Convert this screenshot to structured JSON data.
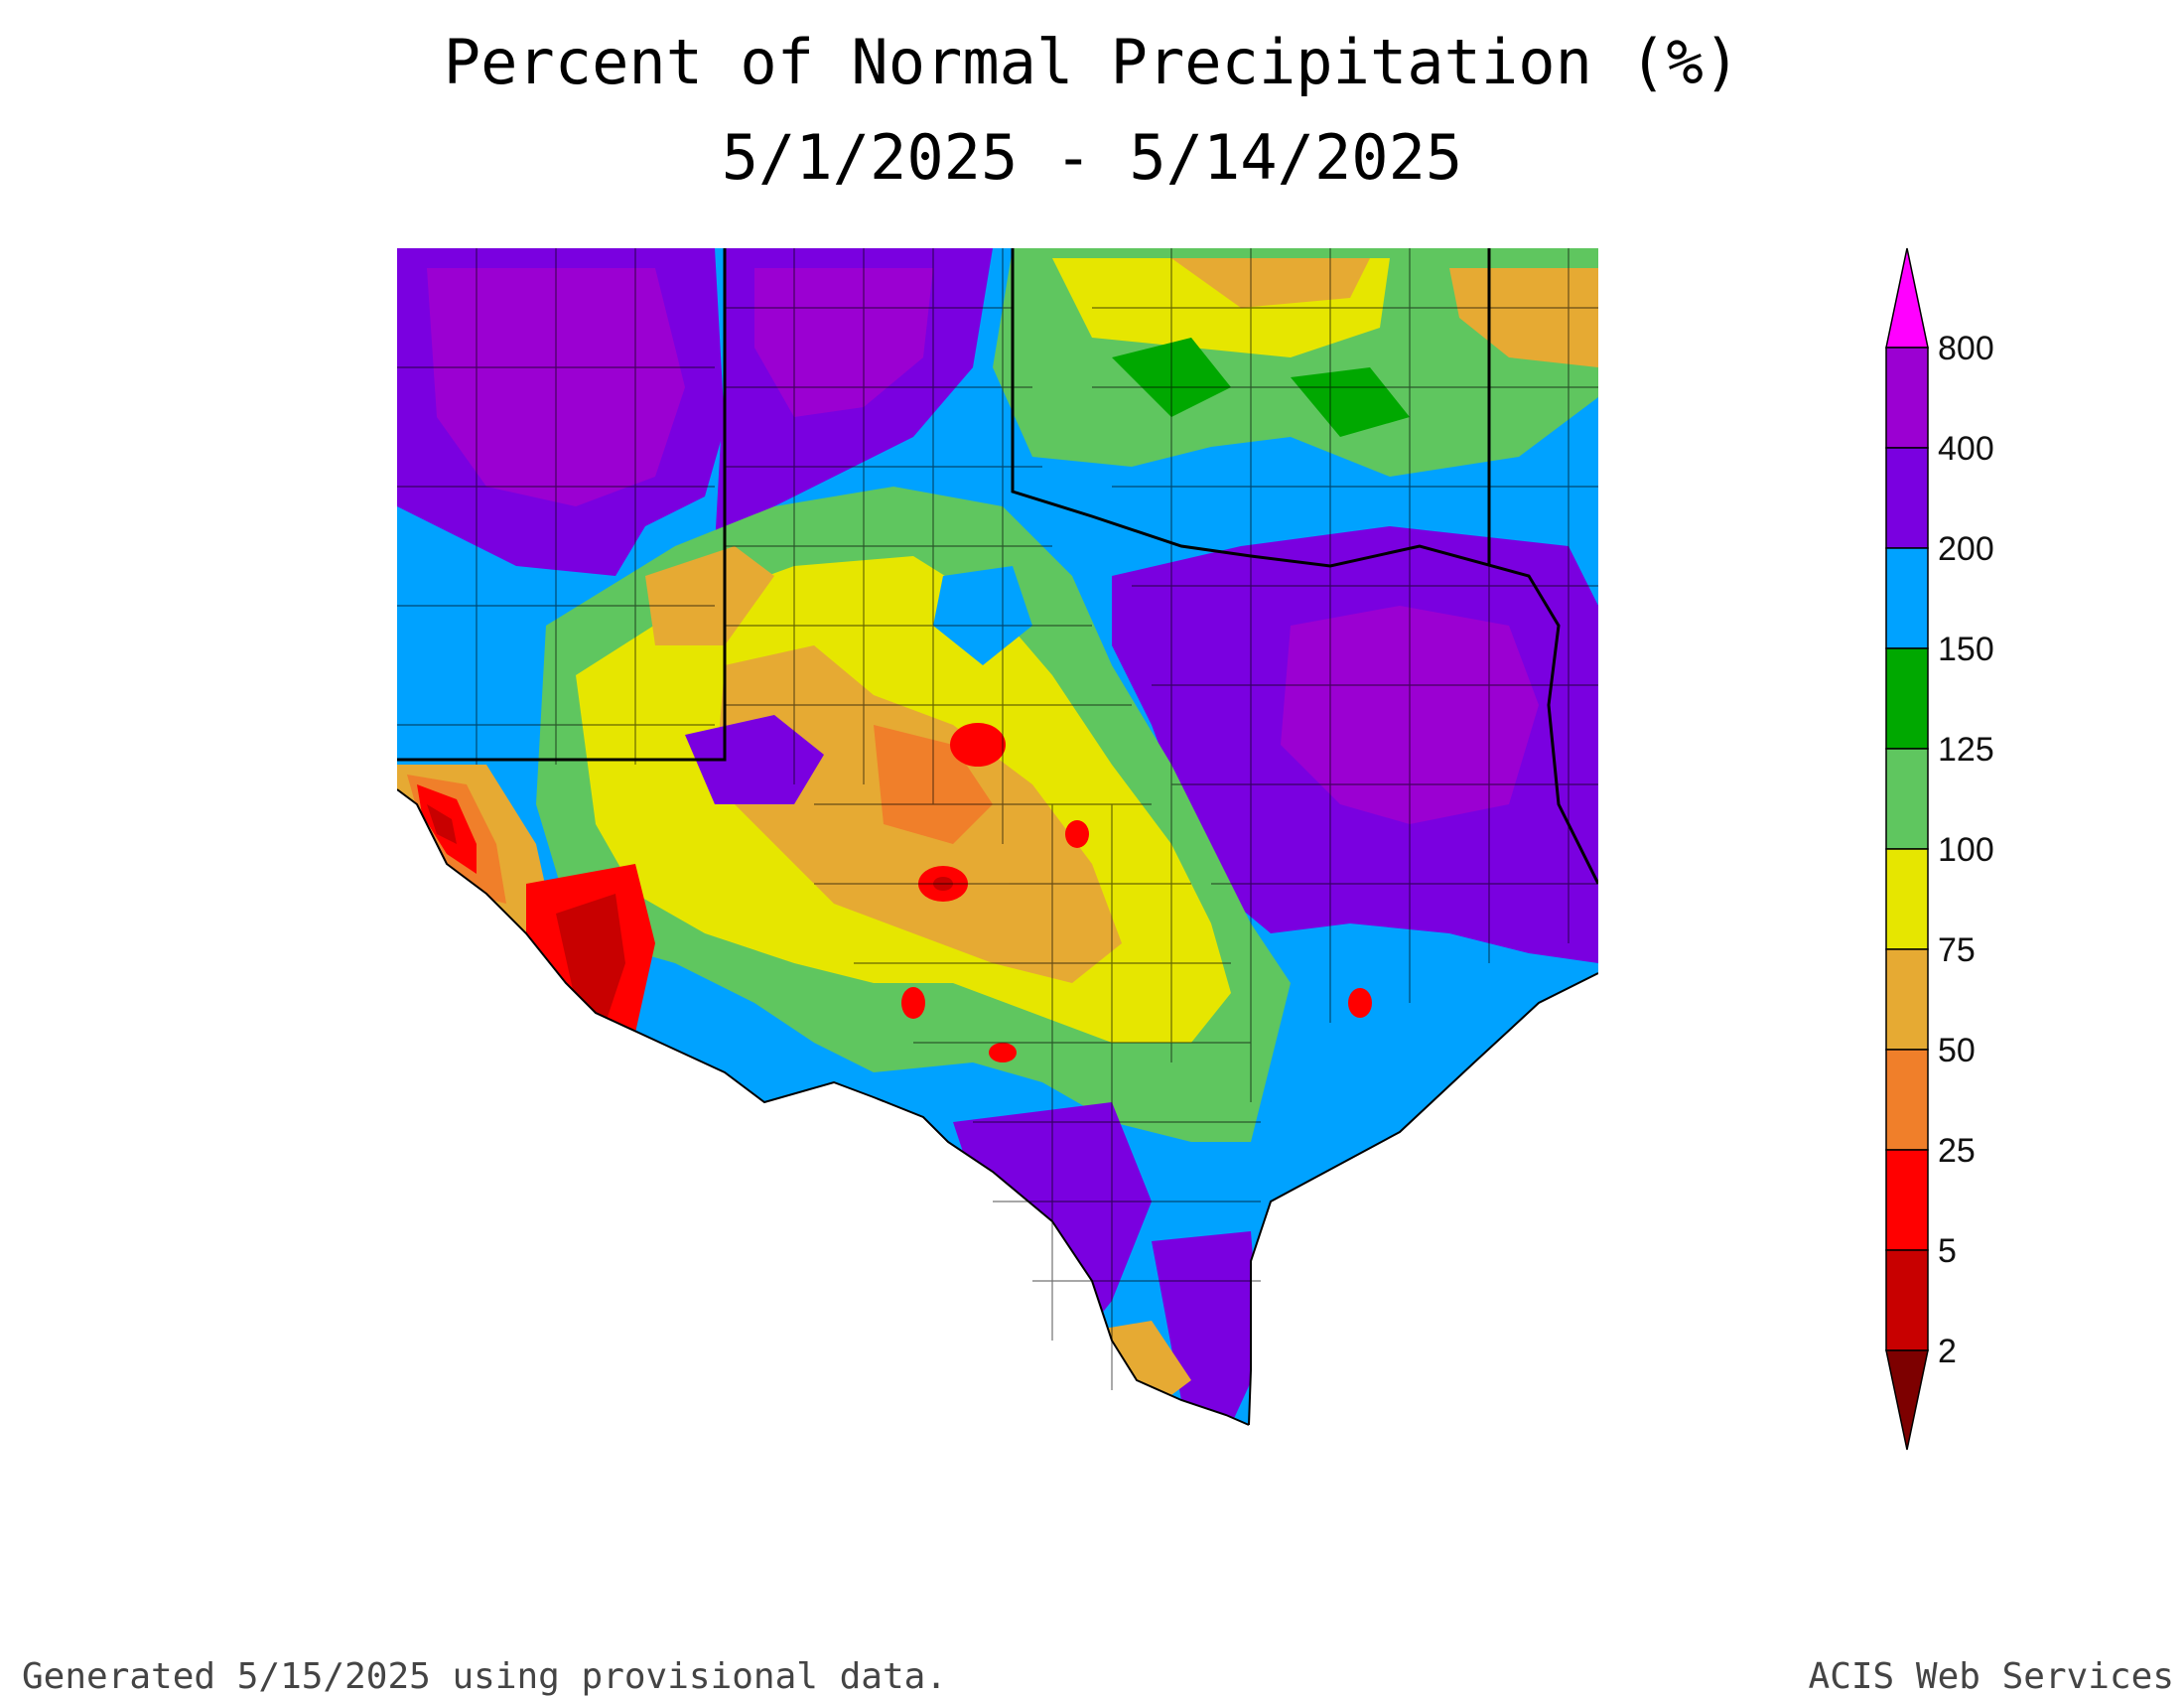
{
  "title": {
    "line1": "Percent of Normal Precipitation (%)",
    "line2": "5/1/2025 - 5/14/2025"
  },
  "legend": {
    "levels": [
      {
        "label": "800",
        "color": "#ff00ff"
      },
      {
        "label": "400",
        "color": "#9b00d2"
      },
      {
        "label": "200",
        "color": "#7a00e0"
      },
      {
        "label": "150",
        "color": "#00a2ff"
      },
      {
        "label": "125",
        "color": "#00a800"
      },
      {
        "label": "100",
        "color": "#5fc65f"
      },
      {
        "label": "75",
        "color": "#e6e600"
      },
      {
        "label": "50",
        "color": "#e6aa33"
      },
      {
        "label": "25",
        "color": "#f07f2a"
      },
      {
        "label": "5",
        "color": "#ff0000"
      },
      {
        "label": "2",
        "color": "#c80000"
      },
      {
        "label": "",
        "color": "#7d0000"
      }
    ]
  },
  "footer": {
    "generated": "Generated 5/15/2025  using provisional data.",
    "credit": "ACIS Web Services"
  }
}
